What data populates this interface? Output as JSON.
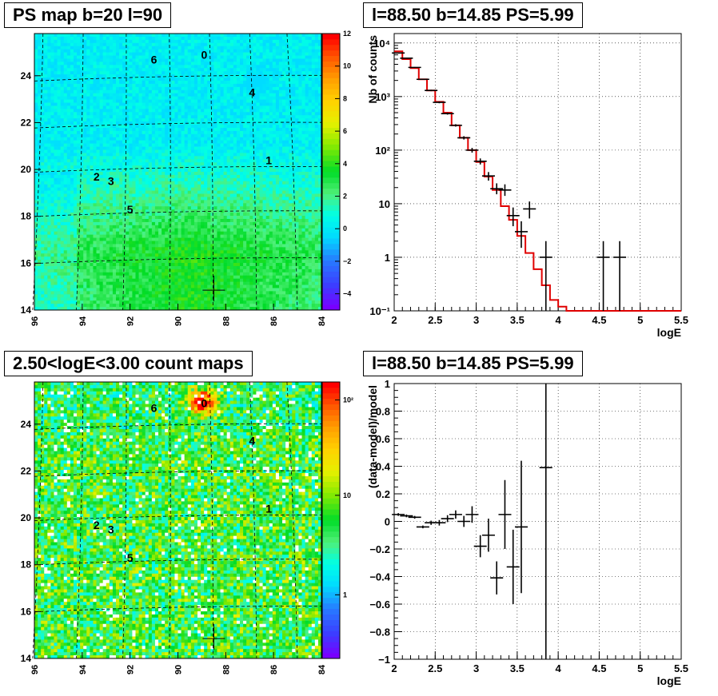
{
  "panels": {
    "tl_title": "PS map b=20 l=90",
    "tr_title": "l=88.50 b=14.85 PS=5.99",
    "bl_title": "2.50<logE<3.00 count maps",
    "br_title": "l=88.50 b=14.85 PS=5.99"
  },
  "chart_data": [
    {
      "type": "heatmap",
      "title": "PS map b=20 l=90",
      "x_ticks": [
        "96",
        "94",
        "92",
        "90",
        "88",
        "86",
        "84"
      ],
      "y_ticks": [
        "14",
        "16",
        "18",
        "20",
        "22",
        "24"
      ],
      "xlim": [
        96,
        84
      ],
      "ylim": [
        14,
        25.8
      ],
      "colorbar": {
        "min": -5,
        "max": 12,
        "ticks": [
          "−4",
          "−2",
          "0",
          "2",
          "4",
          "6",
          "8",
          "10",
          "12"
        ]
      },
      "sources": [
        {
          "label": "0",
          "l": 88.9,
          "b": 24.9
        },
        {
          "label": "6",
          "l": 91.0,
          "b": 24.7
        },
        {
          "label": "4",
          "l": 86.9,
          "b": 23.3
        },
        {
          "label": "1",
          "l": 86.2,
          "b": 20.4
        },
        {
          "label": "2",
          "l": 93.4,
          "b": 19.7
        },
        {
          "label": "3",
          "l": 92.8,
          "b": 19.5
        },
        {
          "label": "5",
          "l": 92.0,
          "b": 18.3
        }
      ],
      "marker": {
        "l": 88.5,
        "b": 14.85
      }
    },
    {
      "type": "line",
      "title": "l=88.50 b=14.85 PS=5.99",
      "xlabel": "logE",
      "ylabel": "Nb of counts",
      "xlim": [
        2,
        5.5
      ],
      "ylim": [
        0.1,
        15000
      ],
      "yscale": "log",
      "grid": true,
      "x_ticks": [
        "2",
        "2.5",
        "3",
        "3.5",
        "4",
        "4.5",
        "5",
        "5.5"
      ],
      "y_ticks": [
        "10⁻¹",
        "1",
        "10",
        "10²",
        "10³",
        "10⁴"
      ],
      "model_step": {
        "edges": [
          2.0,
          2.1,
          2.2,
          2.3,
          2.4,
          2.5,
          2.6,
          2.7,
          2.8,
          2.9,
          3.0,
          3.1,
          3.2,
          3.3,
          3.4,
          3.5,
          3.6,
          3.7,
          3.8,
          3.9,
          4.0,
          4.1,
          4.2,
          4.3,
          5.5
        ],
        "values": [
          7000,
          5000,
          3400,
          2100,
          1300,
          800,
          500,
          290,
          170,
          100,
          60,
          32,
          18,
          9,
          5,
          2.5,
          1.2,
          0.6,
          0.3,
          0.16,
          0.12,
          0.1,
          0.1,
          0.1
        ]
      },
      "points": [
        {
          "x": 2.05,
          "y": 6500,
          "ylo": 6400,
          "yhi": 6600
        },
        {
          "x": 2.15,
          "y": 5200,
          "ylo": 5100,
          "yhi": 5300
        },
        {
          "x": 2.25,
          "y": 3500,
          "ylo": 3440,
          "yhi": 3560
        },
        {
          "x": 2.35,
          "y": 2100,
          "ylo": 2050,
          "yhi": 2150
        },
        {
          "x": 2.45,
          "y": 1300,
          "ylo": 1260,
          "yhi": 1340
        },
        {
          "x": 2.55,
          "y": 780,
          "ylo": 750,
          "yhi": 810
        },
        {
          "x": 2.65,
          "y": 480,
          "ylo": 460,
          "yhi": 500
        },
        {
          "x": 2.75,
          "y": 290,
          "ylo": 275,
          "yhi": 305
        },
        {
          "x": 2.85,
          "y": 170,
          "ylo": 158,
          "yhi": 182
        },
        {
          "x": 2.95,
          "y": 100,
          "ylo": 90,
          "yhi": 110
        },
        {
          "x": 3.05,
          "y": 62,
          "ylo": 54,
          "yhi": 70
        },
        {
          "x": 3.15,
          "y": 33,
          "ylo": 27,
          "yhi": 39
        },
        {
          "x": 3.25,
          "y": 19,
          "ylo": 15,
          "yhi": 24
        },
        {
          "x": 3.35,
          "y": 18,
          "ylo": 14,
          "yhi": 23
        },
        {
          "x": 3.45,
          "y": 6,
          "ylo": 3.8,
          "yhi": 8.5
        },
        {
          "x": 3.55,
          "y": 3,
          "ylo": 1.5,
          "yhi": 4.7
        },
        {
          "x": 3.65,
          "y": 8,
          "ylo": 5.3,
          "yhi": 11
        },
        {
          "x": 3.85,
          "y": 1,
          "ylo": 0.1,
          "yhi": 2
        },
        {
          "x": 4.55,
          "y": 1,
          "ylo": 0.1,
          "yhi": 2
        },
        {
          "x": 4.75,
          "y": 1,
          "ylo": 0.1,
          "yhi": 2
        }
      ]
    },
    {
      "type": "heatmap",
      "title": "2.50<logE<3.00 count maps",
      "x_ticks": [
        "96",
        "94",
        "92",
        "90",
        "88",
        "86",
        "84"
      ],
      "y_ticks": [
        "14",
        "16",
        "18",
        "20",
        "22",
        "24"
      ],
      "xlim": [
        96,
        84
      ],
      "ylim": [
        14,
        25.8
      ],
      "colorbar": {
        "scale": "log",
        "ticks": [
          "1",
          "10",
          "10²"
        ]
      },
      "sources": [
        {
          "label": "0",
          "l": 88.9,
          "b": 24.9
        },
        {
          "label": "6",
          "l": 91.0,
          "b": 24.7
        },
        {
          "label": "4",
          "l": 86.9,
          "b": 23.3
        },
        {
          "label": "1",
          "l": 86.2,
          "b": 20.4
        },
        {
          "label": "2",
          "l": 93.4,
          "b": 19.7
        },
        {
          "label": "3",
          "l": 92.8,
          "b": 19.5
        },
        {
          "label": "5",
          "l": 92.0,
          "b": 18.3
        }
      ],
      "marker": {
        "l": 88.5,
        "b": 14.85
      }
    },
    {
      "type": "scatter",
      "title": "l=88.50 b=14.85 PS=5.99",
      "xlabel": "logE",
      "ylabel": "(data-model)/model",
      "xlim": [
        2,
        5.5
      ],
      "ylim": [
        -1,
        1
      ],
      "grid": true,
      "x_ticks": [
        "2",
        "2.5",
        "3",
        "3.5",
        "4",
        "4.5",
        "5",
        "5.5"
      ],
      "y_ticks": [
        "−1",
        "−0.8",
        "−0.6",
        "−0.4",
        "−0.2",
        "0",
        "0.2",
        "0.4",
        "0.6",
        "0.8",
        "1"
      ],
      "points": [
        {
          "x": 2.05,
          "y": 0.05,
          "ylo": 0.04,
          "yhi": 0.06
        },
        {
          "x": 2.15,
          "y": 0.04,
          "ylo": 0.03,
          "yhi": 0.05
        },
        {
          "x": 2.25,
          "y": 0.03,
          "ylo": 0.02,
          "yhi": 0.04
        },
        {
          "x": 2.35,
          "y": -0.04,
          "ylo": -0.05,
          "yhi": -0.03
        },
        {
          "x": 2.45,
          "y": -0.01,
          "ylo": -0.025,
          "yhi": 0.005
        },
        {
          "x": 2.55,
          "y": -0.01,
          "ylo": -0.03,
          "yhi": 0.01
        },
        {
          "x": 2.65,
          "y": 0.02,
          "ylo": -0.005,
          "yhi": 0.045
        },
        {
          "x": 2.75,
          "y": 0.05,
          "ylo": 0.02,
          "yhi": 0.08
        },
        {
          "x": 2.85,
          "y": 0.0,
          "ylo": -0.04,
          "yhi": 0.04
        },
        {
          "x": 2.95,
          "y": 0.05,
          "ylo": -0.01,
          "yhi": 0.11
        },
        {
          "x": 3.05,
          "y": -0.18,
          "ylo": -0.26,
          "yhi": -0.1
        },
        {
          "x": 3.15,
          "y": -0.1,
          "ylo": -0.22,
          "yhi": 0.02
        },
        {
          "x": 3.25,
          "y": -0.41,
          "ylo": -0.53,
          "yhi": -0.29
        },
        {
          "x": 3.35,
          "y": 0.05,
          "ylo": -0.2,
          "yhi": 0.3
        },
        {
          "x": 3.45,
          "y": -0.33,
          "ylo": -0.6,
          "yhi": -0.06
        },
        {
          "x": 3.55,
          "y": -0.04,
          "ylo": -0.52,
          "yhi": 0.44
        },
        {
          "x": 3.85,
          "y": 0.39,
          "ylo": -1.0,
          "yhi": 1.0
        }
      ]
    }
  ]
}
